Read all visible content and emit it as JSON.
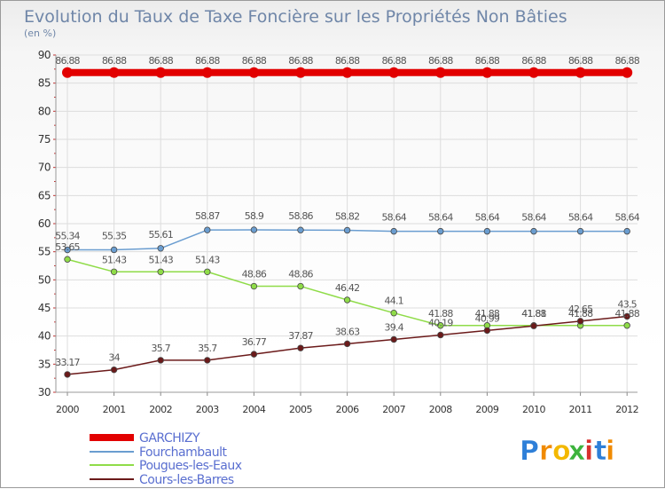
{
  "chart_data": {
    "type": "line",
    "title": "Evolution du Taux de Taxe Foncière sur les Propriétés Non Bâties",
    "subtitle": "(en %)",
    "x": [
      "2000",
      "2001",
      "2002",
      "2003",
      "2004",
      "2005",
      "2006",
      "2007",
      "2008",
      "2009",
      "2010",
      "2011",
      "2012"
    ],
    "ylim": [
      30,
      90
    ],
    "yticks": [
      "30",
      "35",
      "40",
      "45",
      "50",
      "55",
      "60",
      "65",
      "70",
      "75",
      "80",
      "85",
      "90"
    ],
    "grid": true,
    "legend_position": "bottom-left",
    "series": [
      {
        "name": "GARCHIZY",
        "color": "#e20000",
        "values": [
          86.88,
          86.88,
          86.88,
          86.88,
          86.88,
          86.88,
          86.88,
          86.88,
          86.88,
          86.88,
          86.88,
          86.88,
          86.88
        ],
        "labels": [
          "86.88",
          "86.88",
          "86.88",
          "86.88",
          "86.88",
          "86.88",
          "86.88",
          "86.88",
          "86.88",
          "86.88",
          "86.88",
          "86.88",
          "86.88"
        ]
      },
      {
        "name": "Fourchambault",
        "color": "#6a9dd0",
        "values": [
          55.34,
          55.35,
          55.61,
          58.87,
          58.9,
          58.86,
          58.82,
          58.64,
          58.64,
          58.64,
          58.64,
          58.64,
          58.64
        ],
        "labels": [
          "55.34",
          "55.35",
          "55.61",
          "58.87",
          "58.9",
          "58.86",
          "58.82",
          "58.64",
          "58.64",
          "58.64",
          "58.64",
          "58.64",
          "58.64"
        ]
      },
      {
        "name": "Pougues-les-Eaux",
        "color": "#8fdc48",
        "values": [
          53.65,
          51.43,
          51.43,
          51.43,
          48.86,
          48.86,
          46.42,
          44.1,
          41.88,
          41.88,
          41.88,
          41.88,
          41.88
        ],
        "labels": [
          "53.65",
          "51.43",
          "51.43",
          "51.43",
          "48.86",
          "48.86",
          "46.42",
          "44.1",
          "41.88",
          "41.88",
          "41.88",
          "41.88",
          "41.88"
        ]
      },
      {
        "name": "Cours-les-Barres",
        "color": "#6b1a1a",
        "values": [
          33.17,
          34,
          35.7,
          35.7,
          36.77,
          37.87,
          38.63,
          39.4,
          40.19,
          40.99,
          41.81,
          42.65,
          43.5
        ],
        "labels": [
          "33.17",
          "34",
          "35.7",
          "35.7",
          "36.77",
          "37.87",
          "38.63",
          "39.4",
          "40.19",
          "40.99",
          "41.81",
          "42.65",
          "43.5"
        ]
      }
    ]
  },
  "logo": {
    "letters": [
      "P",
      "r",
      "o",
      "x",
      "i",
      "t",
      "i"
    ],
    "colors": [
      "#2e7fd8",
      "#f08a00",
      "#f3b800",
      "#3db33d",
      "#d8302c",
      "#2e7fd8",
      "#f08a00"
    ]
  }
}
